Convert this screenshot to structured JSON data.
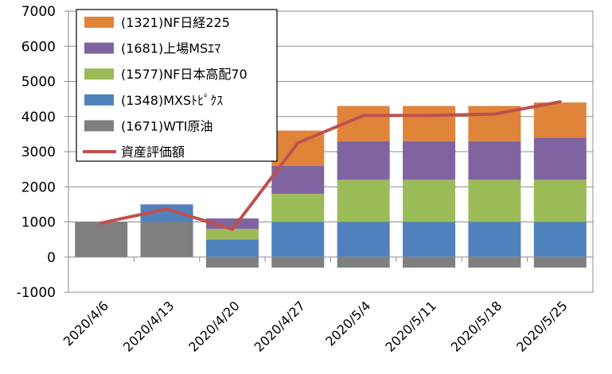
{
  "chart_data": {
    "type": "bar",
    "stacked": true,
    "categories": [
      "2020/4/6",
      "2020/4/13",
      "2020/4/20",
      "2020/4/27",
      "2020/5/4",
      "2020/5/11",
      "2020/5/18",
      "2020/5/25"
    ],
    "ylim": [
      -1000,
      7000
    ],
    "yticks": [
      "7000",
      "6000",
      "5000",
      "4000",
      "3000",
      "2000",
      "1000",
      "0",
      "-1000"
    ],
    "grid": true,
    "legend_position": "top-left",
    "series": [
      {
        "name": "(1671)WTI原油",
        "type": "bar",
        "color": "#7f7f7f",
        "values": [
          1000,
          1000,
          -300,
          -300,
          -300,
          -300,
          -300,
          -300
        ]
      },
      {
        "name": "(1348)MXSﾄﾋﾟｸｽ",
        "type": "bar",
        "color": "#4f81bd",
        "values": [
          0,
          500,
          500,
          1000,
          1000,
          1000,
          1000,
          1000
        ]
      },
      {
        "name": "(1577)NF日本高配70",
        "type": "bar",
        "color": "#9bbb59",
        "values": [
          0,
          0,
          300,
          800,
          1200,
          1200,
          1200,
          1200
        ]
      },
      {
        "name": "(1681)上場MSｴﾏ",
        "type": "bar",
        "color": "#8064a2",
        "values": [
          0,
          0,
          300,
          800,
          1100,
          1100,
          1100,
          1200
        ]
      },
      {
        "name": "(1321)NF日経225",
        "type": "bar",
        "color": "#e0843a",
        "values": [
          0,
          0,
          0,
          1000,
          1000,
          1000,
          1000,
          1000
        ]
      },
      {
        "name": "資産評価額",
        "type": "line",
        "color": "#c0504d",
        "values": [
          970,
          1370,
          790,
          3250,
          4030,
          4030,
          4070,
          4420
        ]
      }
    ],
    "legend_order": [
      4,
      3,
      2,
      1,
      0,
      5
    ]
  }
}
